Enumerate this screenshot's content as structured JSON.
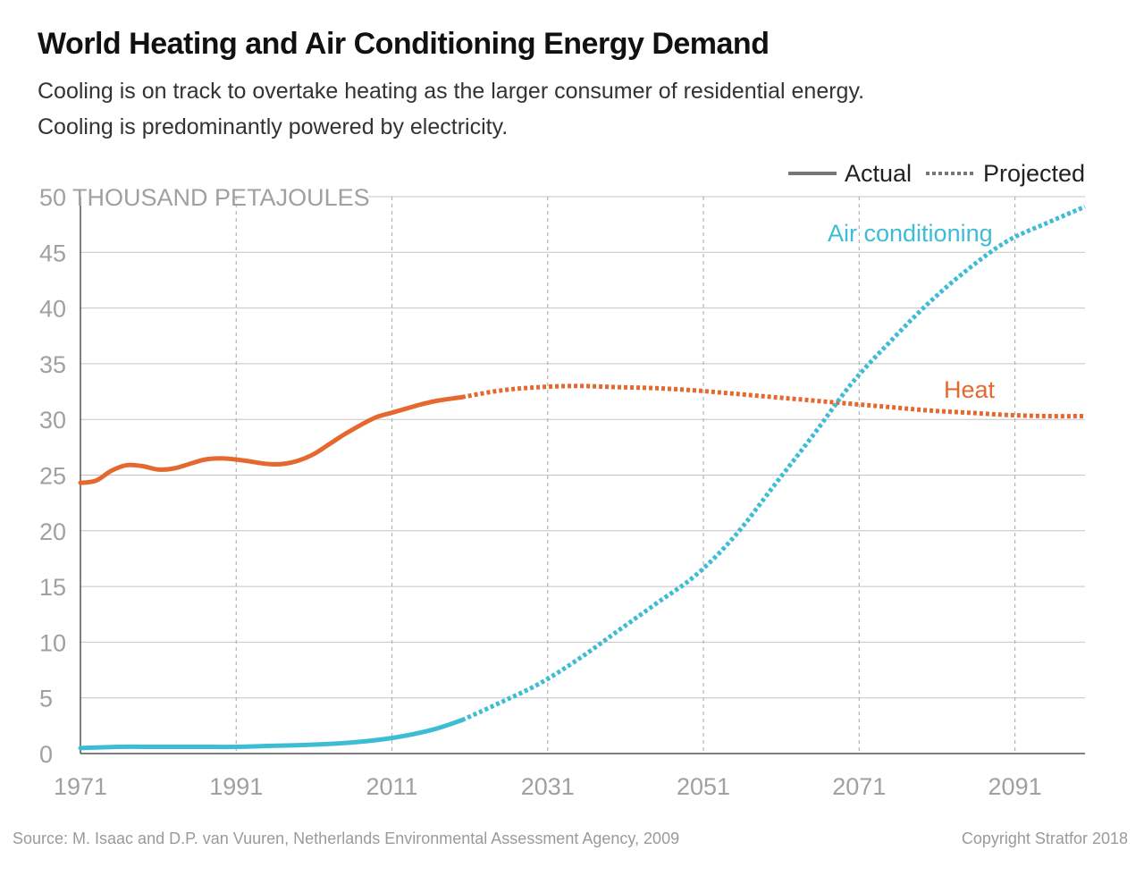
{
  "title": "World Heating and Air Conditioning Energy Demand",
  "subtitle": "Cooling is on track to overtake heating as the larger consumer of residential energy. Cooling is predominantly powered by electricity.",
  "source": "Source: M. Isaac and D.P. van Vuuren, Netherlands Environmental Assessment Agency, 2009",
  "copyright": "Copyright Stratfor 2018",
  "legend": {
    "actual": "Actual",
    "projected": "Projected",
    "color": "#777777"
  },
  "chart_data": {
    "type": "line",
    "title": "World Heating and Air Conditioning Energy Demand",
    "ylabel": "THOUSAND PETAJOULES",
    "ylim": [
      0,
      50
    ],
    "xlim": [
      1971,
      2100
    ],
    "x_ticks": [
      1971,
      1991,
      2011,
      2031,
      2051,
      2071,
      2091
    ],
    "y_ticks": [
      0,
      5,
      10,
      15,
      20,
      25,
      30,
      35,
      40,
      45,
      50
    ],
    "y_top_tick_label": "50 THOUSAND PETAJOULES",
    "actual_end_year": 2020,
    "grid": {
      "horizontal": "solid",
      "vertical": "dashed"
    },
    "legend_position": "top-right",
    "series": [
      {
        "name": "Heat",
        "color": "#e5682e",
        "x": [
          1971,
          1973,
          1975,
          1977,
          1979,
          1981,
          1983,
          1985,
          1987,
          1989,
          1991,
          1993,
          1995,
          1997,
          1999,
          2001,
          2003,
          2005,
          2007,
          2009,
          2011,
          2013,
          2015,
          2017,
          2020,
          2025,
          2030,
          2035,
          2040,
          2045,
          2050,
          2055,
          2060,
          2065,
          2070,
          2075,
          2080,
          2085,
          2090,
          2095,
          2100
        ],
        "values": [
          24.3,
          24.5,
          25.4,
          25.9,
          25.8,
          25.5,
          25.6,
          26.0,
          26.4,
          26.5,
          26.4,
          26.2,
          26.0,
          26.0,
          26.3,
          26.9,
          27.8,
          28.7,
          29.5,
          30.2,
          30.6,
          31.0,
          31.4,
          31.7,
          32.0,
          32.6,
          32.9,
          33.0,
          32.9,
          32.8,
          32.6,
          32.3,
          32.0,
          31.7,
          31.4,
          31.1,
          30.8,
          30.6,
          30.4,
          30.3,
          30.3
        ]
      },
      {
        "name": "Air conditioning",
        "color": "#3dbdd4",
        "x": [
          1971,
          1976,
          1981,
          1986,
          1991,
          1996,
          2001,
          2006,
          2011,
          2016,
          2020,
          2025,
          2030,
          2035,
          2040,
          2045,
          2050,
          2055,
          2060,
          2065,
          2070,
          2075,
          2080,
          2085,
          2090,
          2095,
          2100
        ],
        "values": [
          0.5,
          0.6,
          0.6,
          0.6,
          0.6,
          0.7,
          0.8,
          1.0,
          1.4,
          2.1,
          3.0,
          4.6,
          6.3,
          8.5,
          11.0,
          13.5,
          16.0,
          19.5,
          24.0,
          28.5,
          33.2,
          37.0,
          40.5,
          43.5,
          46.0,
          47.6,
          49.1
        ]
      }
    ]
  }
}
